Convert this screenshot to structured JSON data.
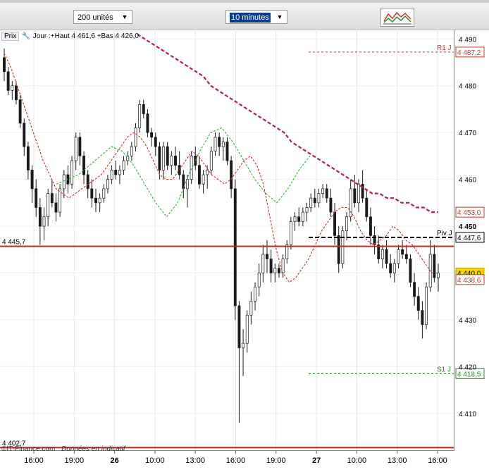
{
  "toolbar": {
    "units_value": "200 unités",
    "interval_value": "10 minutes",
    "chart_tool_icon": "chart-indicators-icon"
  },
  "info": {
    "prix_label": "Prix",
    "tool_icon": "wrench-icon",
    "summary": "Jour :+Haut 4 461,6 +Bas 4 426,0"
  },
  "footer": {
    "copyright": "©IT-Finance.com",
    "note": "Données en indicatif"
  },
  "chart_data": {
    "type": "candlestick",
    "y_ticks": [
      {
        "value": 4410,
        "label": "4 410",
        "bold": false
      },
      {
        "value": 4420,
        "label": "4 420",
        "bold": false
      },
      {
        "value": 4430,
        "label": "4 430",
        "bold": false
      },
      {
        "value": 4440,
        "label": "4 440",
        "bold": false
      },
      {
        "value": 4450,
        "label": "4 450",
        "bold": true
      },
      {
        "value": 4460,
        "label": "4 460",
        "bold": false
      },
      {
        "value": 4470,
        "label": "4 470",
        "bold": false
      },
      {
        "value": 4480,
        "label": "4 480",
        "bold": false
      },
      {
        "value": 4490,
        "label": "4 490",
        "bold": false
      }
    ],
    "ylim": [
      4402,
      4492
    ],
    "x_ticks": [
      {
        "label": "16:00",
        "bold": false
      },
      {
        "label": "19:00",
        "bold": false
      },
      {
        "label": "26",
        "bold": true
      },
      {
        "label": "10:00",
        "bold": false
      },
      {
        "label": "13:00",
        "bold": false
      },
      {
        "label": "16:00",
        "bold": false
      },
      {
        "label": "19:00",
        "bold": false
      },
      {
        "label": "27",
        "bold": true
      },
      {
        "label": "10:00",
        "bold": false
      },
      {
        "label": "13:00",
        "bold": false
      },
      {
        "label": "16:00",
        "bold": false
      }
    ],
    "levels": [
      {
        "name": "R1 J",
        "value": 4487.2,
        "label": "4 487,2",
        "color": "#c0392b",
        "style": "dotted"
      },
      {
        "name": "Piv J",
        "value": 4447.6,
        "label": "4 447,6",
        "color": "#000000",
        "style": "dashed"
      },
      {
        "name": "S1 J",
        "value": 4418.5,
        "label": "4 418,5",
        "color": "#2e8b2e",
        "style": "dotted"
      }
    ],
    "horizontal_lines": [
      {
        "value": 4445.7,
        "label": "4 445,7",
        "color": "#d0201a"
      },
      {
        "value": 4402.7,
        "label": "4 402,7",
        "color": "#d0201a"
      }
    ],
    "price_tags": [
      {
        "value": 4453.0,
        "label": "4 453,0",
        "color": "#c0392b"
      },
      {
        "value": 4440.0,
        "label": "4 440,0",
        "color": "#c8a000"
      },
      {
        "value": 4438.6,
        "label": "4 438,6",
        "color": "#c0392b"
      }
    ],
    "candles": [
      [
        4486,
        4488,
        4481,
        4483
      ],
      [
        4483,
        4484,
        4478,
        4479
      ],
      [
        4479,
        4481,
        4477,
        4480
      ],
      [
        4480,
        4481,
        4476,
        4477
      ],
      [
        4477,
        4478,
        4471,
        4472
      ],
      [
        4472,
        4473,
        4465,
        4467
      ],
      [
        4467,
        4468,
        4460,
        4462
      ],
      [
        4462,
        4463,
        4455,
        4458
      ],
      [
        4458,
        4460,
        4452,
        4454
      ],
      [
        4454,
        4456,
        4446,
        4450
      ],
      [
        4450,
        4454,
        4447,
        4452
      ],
      [
        4452,
        4458,
        4450,
        4457
      ],
      [
        4457,
        4460,
        4454,
        4455
      ],
      [
        4455,
        4457,
        4451,
        4453
      ],
      [
        4453,
        4459,
        4452,
        4458
      ],
      [
        4458,
        4462,
        4456,
        4461
      ],
      [
        4461,
        4463,
        4457,
        4459
      ],
      [
        4459,
        4465,
        4458,
        4464
      ],
      [
        4464,
        4470,
        4462,
        4469
      ],
      [
        4469,
        4470,
        4463,
        4465
      ],
      [
        4465,
        4466,
        4459,
        4461
      ],
      [
        4461,
        4462,
        4456,
        4458
      ],
      [
        4458,
        4460,
        4454,
        4456
      ],
      [
        4456,
        4458,
        4453,
        4455
      ],
      [
        4455,
        4457,
        4453,
        4456
      ],
      [
        4456,
        4459,
        4455,
        4458
      ],
      [
        4458,
        4461,
        4457,
        4460
      ],
      [
        4460,
        4463,
        4459,
        4462
      ],
      [
        4462,
        4464,
        4460,
        4461
      ],
      [
        4461,
        4463,
        4459,
        4462
      ],
      [
        4462,
        4465,
        4461,
        4464
      ],
      [
        4464,
        4466,
        4463,
        4465
      ],
      [
        4465,
        4468,
        4464,
        4467
      ],
      [
        4467,
        4472,
        4466,
        4471
      ],
      [
        4471,
        4477,
        4470,
        4476
      ],
      [
        4476,
        4477,
        4473,
        4474
      ],
      [
        4474,
        4475,
        4469,
        4470
      ],
      [
        4470,
        4471,
        4467,
        4469
      ],
      [
        4469,
        4470,
        4465,
        4467
      ],
      [
        4467,
        4468,
        4460,
        4462
      ],
      [
        4462,
        4468,
        4460,
        4467
      ],
      [
        4467,
        4468,
        4462,
        4463
      ],
      [
        4463,
        4466,
        4461,
        4465
      ],
      [
        4465,
        4467,
        4462,
        4463
      ],
      [
        4463,
        4466,
        4460,
        4461
      ],
      [
        4461,
        4462,
        4456,
        4458
      ],
      [
        4458,
        4461,
        4454,
        4460
      ],
      [
        4460,
        4466,
        4459,
        4465
      ],
      [
        4465,
        4467,
        4462,
        4463
      ],
      [
        4463,
        4465,
        4458,
        4459
      ],
      [
        4459,
        4462,
        4457,
        4461
      ],
      [
        4461,
        4463,
        4458,
        4462
      ],
      [
        4462,
        4467,
        4461,
        4466
      ],
      [
        4466,
        4470,
        4465,
        4469
      ],
      [
        4469,
        4470,
        4465,
        4467
      ],
      [
        4467,
        4469,
        4464,
        4468
      ],
      [
        4468,
        4469,
        4463,
        4464
      ],
      [
        4464,
        4465,
        4456,
        4458
      ],
      [
        4458,
        4460,
        4430,
        4433
      ],
      [
        4433,
        4434,
        4408,
        4424
      ],
      [
        4424,
        4428,
        4418,
        4425
      ],
      [
        4425,
        4432,
        4423,
        4431
      ],
      [
        4431,
        4436,
        4429,
        4434
      ],
      [
        4434,
        4438,
        4432,
        4437
      ],
      [
        4437,
        4442,
        4435,
        4440
      ],
      [
        4440,
        4446,
        4438,
        4444
      ],
      [
        4444,
        4447,
        4440,
        4443
      ],
      [
        4443,
        4445,
        4438,
        4440
      ],
      [
        4440,
        4442,
        4438,
        4441
      ],
      [
        4441,
        4442,
        4439,
        4440
      ],
      [
        4440,
        4444,
        4439,
        4443
      ],
      [
        4443,
        4447,
        4442,
        4446
      ],
      [
        4446,
        4452,
        4445,
        4451
      ],
      [
        4451,
        4453,
        4449,
        4452
      ],
      [
        4452,
        4454,
        4450,
        4451
      ],
      [
        4451,
        4454,
        4450,
        4453
      ],
      [
        4453,
        4455,
        4451,
        4454
      ],
      [
        4454,
        4457,
        4453,
        4456
      ],
      [
        4456,
        4458,
        4454,
        4455
      ],
      [
        4455,
        4458,
        4454,
        4457
      ],
      [
        4457,
        4459,
        4456,
        4458
      ],
      [
        4458,
        4459,
        4455,
        4456
      ],
      [
        4456,
        4458,
        4452,
        4453
      ],
      [
        4453,
        4455,
        4446,
        4448
      ],
      [
        4448,
        4450,
        4440,
        4442
      ],
      [
        4442,
        4450,
        4441,
        4449
      ],
      [
        4449,
        4453,
        4447,
        4452
      ],
      [
        4452,
        4460,
        4451,
        4458
      ],
      [
        4458,
        4461,
        4454,
        4455
      ],
      [
        4455,
        4460,
        4453,
        4459
      ],
      [
        4459,
        4462,
        4455,
        4456
      ],
      [
        4456,
        4458,
        4451,
        4452
      ],
      [
        4452,
        4454,
        4446,
        4448
      ],
      [
        4448,
        4450,
        4444,
        4446
      ],
      [
        4446,
        4448,
        4442,
        4443
      ],
      [
        4443,
        4446,
        4441,
        4445
      ],
      [
        4445,
        4447,
        4441,
        4442
      ],
      [
        4442,
        4444,
        4439,
        4440
      ],
      [
        4440,
        4443,
        4438,
        4442
      ],
      [
        4442,
        4446,
        4441,
        4445
      ],
      [
        4445,
        4447,
        4443,
        4444
      ],
      [
        4444,
        4446,
        4442,
        4443
      ],
      [
        4443,
        4444,
        4437,
        4438
      ],
      [
        4438,
        4440,
        4433,
        4435
      ],
      [
        4435,
        4437,
        4430,
        4432
      ],
      [
        4432,
        4434,
        4426,
        4429
      ],
      [
        4429,
        4438,
        4428,
        4437
      ],
      [
        4437,
        4447,
        4436,
        4444
      ],
      [
        4444,
        4446,
        4438,
        4439
      ],
      [
        4439,
        4442,
        4436,
        4440
      ]
    ],
    "series": [
      {
        "name": "MA short",
        "color": "#d0302a",
        "style": "dashed",
        "values": [
          4487,
          4484,
          4480,
          4476,
          4472,
          4468,
          4464,
          4461,
          4458,
          4457,
          4456,
          4457,
          4458,
          4459,
          4460,
          4461,
          4463,
          4465,
          4467,
          4469,
          4470,
          4469,
          4467,
          4464,
          4461,
          4460,
          4460,
          4462,
          4464,
          4466,
          4465,
          4463,
          4461,
          4460,
          4459,
          4460,
          4462,
          4464,
          4465,
          4463,
          4459,
          4452,
          4445,
          4440,
          4438,
          4439,
          4441,
          4443,
          4446,
          4449,
          4451,
          4453,
          4454,
          4454,
          4452,
          4449,
          4447,
          4446,
          4447,
          4448,
          4450,
          4449,
          4447,
          4446,
          4444,
          4442,
          4440,
          4440
        ]
      },
      {
        "name": "MA long",
        "color": "#b82040",
        "style": "dashed",
        "values": [
          4491,
          4490,
          4489,
          4488,
          4487,
          4486,
          4485,
          4484,
          4483,
          4482,
          4480,
          4479,
          4478,
          4477,
          4476,
          4475,
          4474,
          4473,
          4472,
          4471,
          4470,
          4468,
          4467,
          4466,
          4465,
          4464,
          4463,
          4462,
          4461,
          4460,
          4459,
          4458,
          4457,
          4457,
          4456,
          4456,
          4455,
          4455,
          4454,
          4454,
          4453,
          4453
        ]
      },
      {
        "name": "MA green",
        "color": "#3aaa3a",
        "style": "dashed",
        "values": [
          4459,
          4460,
          4461,
          4463,
          4465,
          4467,
          4466,
          4463,
          4459,
          4455,
          4452,
          4455,
          4461,
          4466,
          4470,
          4471,
          4468,
          4464,
          4460,
          4457,
          4455,
          4458,
          4462,
          4465
        ]
      }
    ]
  }
}
